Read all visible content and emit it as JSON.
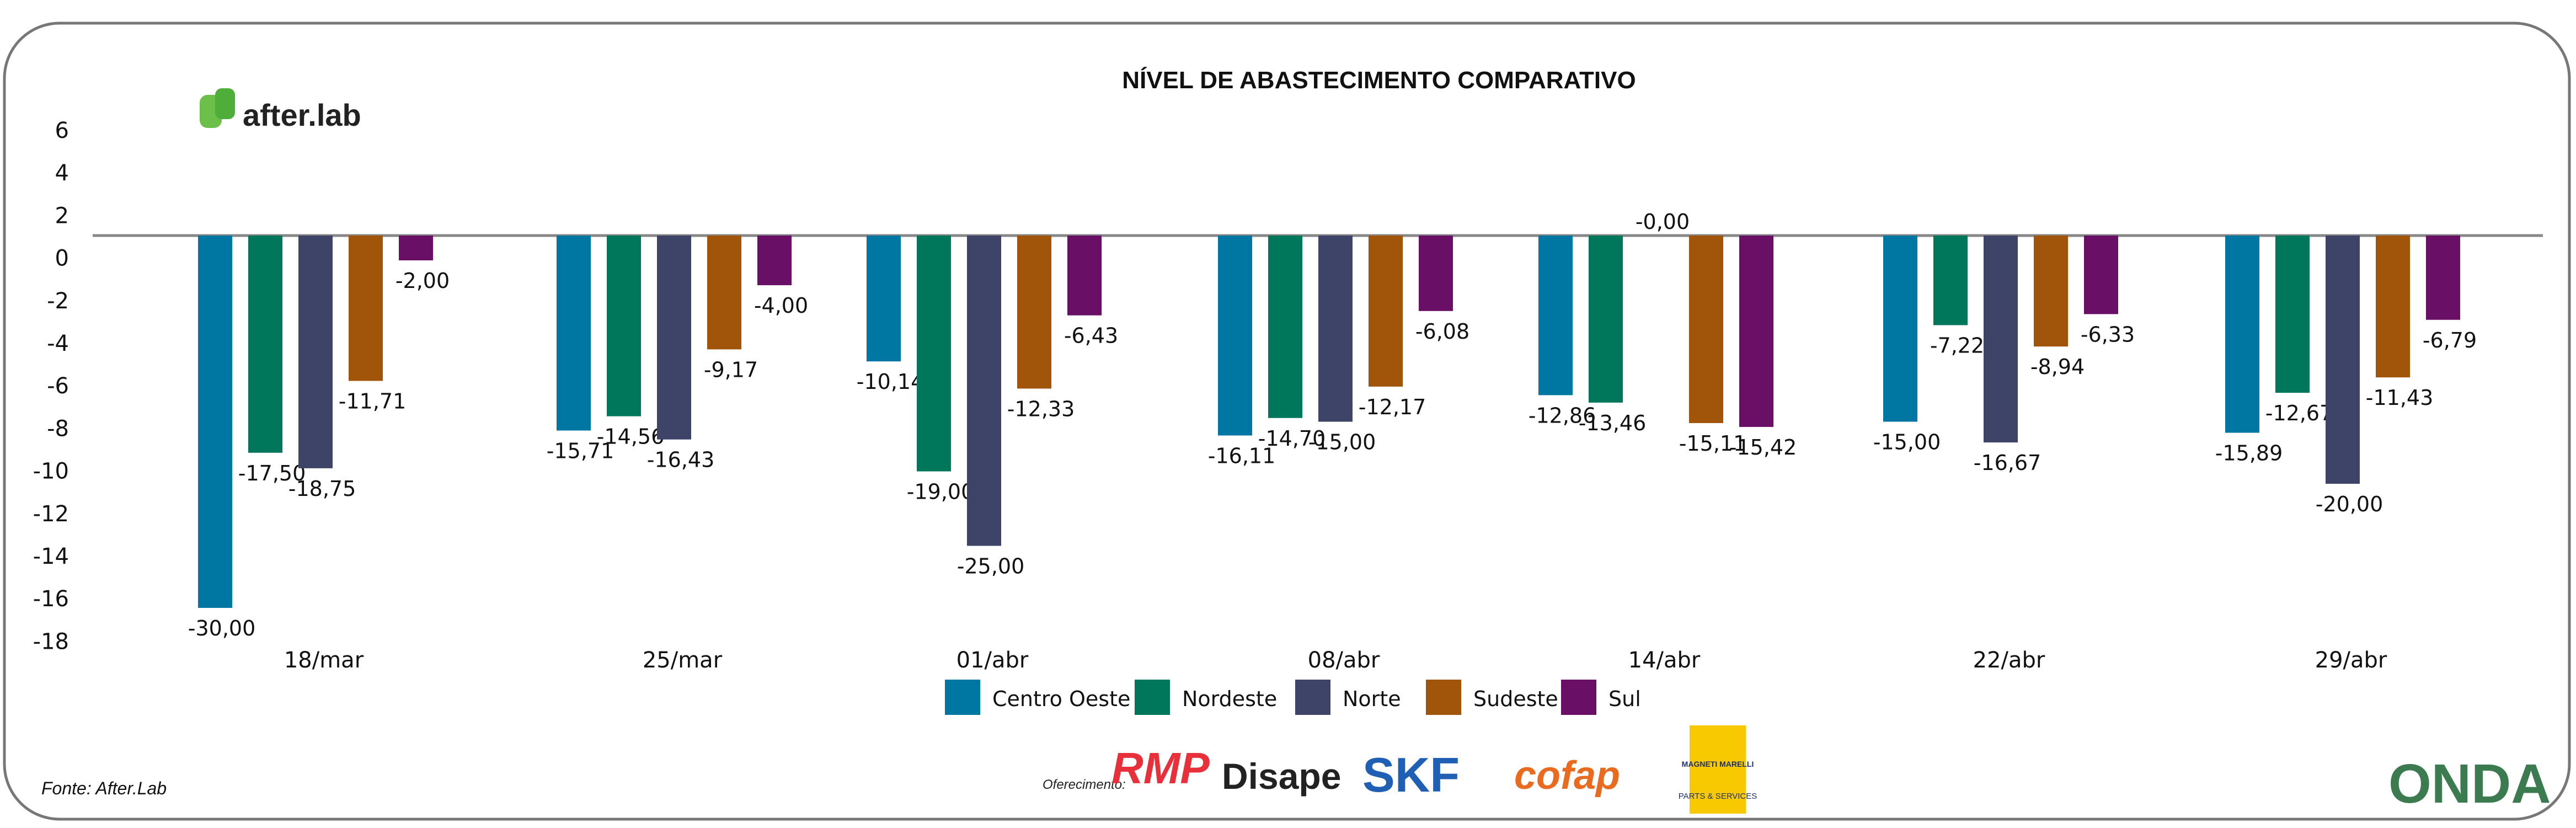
{
  "brand": {
    "name": "after.lab"
  },
  "footer": {
    "source": "Fonte: After.Lab",
    "sponsors_label": "Oferecimento:",
    "sponsors": [
      "RMP",
      "Disape",
      "SKF",
      "cofap",
      "MAGNETI MARELLI",
      "PARTS & SERVICES",
      "ONDA"
    ]
  },
  "chart_data": {
    "type": "bar",
    "title": "NÍVEL DE ABASTECIMENTO COMPARATIVO",
    "categories": [
      "18/mar",
      "25/mar",
      "01/abr",
      "08/abr",
      "14/abr",
      "22/abr",
      "29/abr"
    ],
    "yticks": [
      6,
      4,
      2,
      0,
      -2,
      -4,
      -6,
      -8,
      -10,
      -12,
      -14,
      -16,
      -18
    ],
    "legend_position": "bottom",
    "grid": false,
    "series": [
      {
        "name": "Centro Oeste",
        "color": "#0077a3",
        "values": [
          -30.0,
          -15.71,
          -10.14,
          -16.11,
          -12.86,
          -15.0,
          -15.89
        ],
        "labels": [
          "-30,00",
          "-15,71",
          "-10,14",
          "-16,11",
          "-12,86",
          "-15,00",
          "-15,89"
        ]
      },
      {
        "name": "Nordeste",
        "color": "#00765a",
        "values": [
          -17.5,
          -14.56,
          -19.0,
          -14.7,
          -13.46,
          -7.22,
          -12.67
        ],
        "labels": [
          "-17,50",
          "-14,56",
          "-19,00",
          "-14,70",
          "-13,46",
          "-7,22",
          "-12,67"
        ]
      },
      {
        "name": "Norte",
        "color": "#3e4468",
        "values": [
          -18.75,
          -16.43,
          -25.0,
          -15.0,
          -0.0,
          -16.67,
          -20.0
        ],
        "labels": [
          "-18,75",
          "-16,43",
          "-25,00",
          "-15,00",
          "-0,00",
          "-16,67",
          "-20,00"
        ]
      },
      {
        "name": "Sudeste",
        "color": "#a0550a",
        "values": [
          -11.71,
          -9.17,
          -12.33,
          -12.17,
          -15.11,
          -8.94,
          -11.43
        ],
        "labels": [
          "-11,71",
          "-9,17",
          "-12,33",
          "-12,17",
          "-15,11",
          "-8,94",
          "-11,43"
        ]
      },
      {
        "name": "Sul",
        "color": "#6a0f66",
        "values": [
          -2.0,
          -4.0,
          -6.43,
          -6.08,
          -15.42,
          -6.33,
          -6.79
        ],
        "labels": [
          "-2,00",
          "-4,00",
          "-6,43",
          "-6,08",
          "-15,42",
          "-6,33",
          "-6,79"
        ]
      }
    ]
  }
}
